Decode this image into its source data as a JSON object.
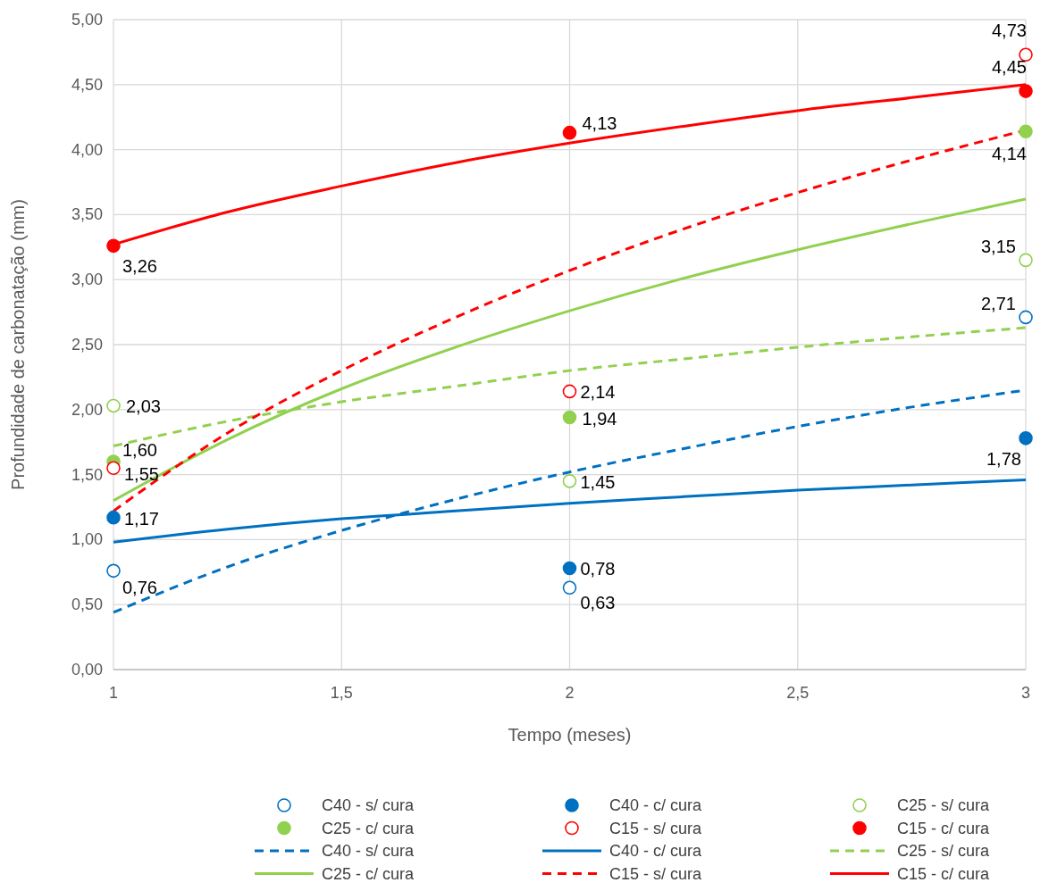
{
  "chart_data": {
    "type": "scatter",
    "xlabel": "Tempo (meses)",
    "ylabel": "Profundidade de carbonatação (mm)",
    "xlim": [
      1,
      3
    ],
    "xticks": [
      1,
      {
        "value": 1.5,
        "label": "1,5"
      },
      2,
      {
        "value": 2.5,
        "label": "2,5"
      },
      3
    ],
    "ylim": [
      0,
      5
    ],
    "yticks": [
      {
        "value": 0,
        "label": "0,00"
      },
      {
        "value": 0.5,
        "label": "0,50"
      },
      {
        "value": 1,
        "label": "1,00"
      },
      {
        "value": 1.5,
        "label": "1,50"
      },
      {
        "value": 2,
        "label": "2,00"
      },
      {
        "value": 2.5,
        "label": "2,50"
      },
      {
        "value": 3,
        "label": "3,00"
      },
      {
        "value": 3.5,
        "label": "3,50"
      },
      {
        "value": 4,
        "label": "4,00"
      },
      {
        "value": 4.5,
        "label": "4,50"
      },
      {
        "value": 5,
        "label": "5,00"
      }
    ],
    "grid": true,
    "legend": "bottom",
    "x": [
      1,
      2,
      3
    ],
    "series": [
      {
        "name": "C40 - s/ cura",
        "marker": "circle",
        "color": "#0070c0",
        "values": [
          0.76,
          0.63,
          2.71
        ],
        "value_labels": [
          "0,76",
          "0,63",
          "2,71"
        ]
      },
      {
        "name": "C40 - c/ cura",
        "marker": "circle",
        "color": "#0070c0",
        "values": [
          1.17,
          0.78,
          1.78
        ],
        "value_labels": [
          "1,17",
          "0,78",
          "1,78"
        ]
      },
      {
        "name": "C25 - s/ cura",
        "marker": "circle",
        "color": "#92d050",
        "values": [
          2.03,
          1.45,
          3.15
        ],
        "value_labels": [
          "2,03",
          "1,45",
          "3,15"
        ]
      },
      {
        "name": "C25 - c/ cura",
        "marker": "circle",
        "color": "#92d050",
        "values": [
          1.6,
          1.94,
          4.14
        ],
        "value_labels": [
          "1,60",
          "1,94",
          "4,14"
        ]
      },
      {
        "name": "C15 - s/ cura",
        "marker": "circle",
        "color": "#ff0000",
        "values": [
          1.55,
          2.14,
          4.73
        ],
        "value_labels": [
          "1,55",
          "2,14",
          "4,73"
        ]
      },
      {
        "name": "C15 - c/ cura",
        "marker": "circle",
        "color": "#ff0000",
        "values": [
          3.26,
          4.13,
          4.45
        ],
        "value_labels": [
          "3,26",
          "4,13",
          "4,45"
        ]
      },
      {
        "name": "C40 - s/ cura",
        "type": "line",
        "line_style": "dashed",
        "color": "#0070c0",
        "x": [
          1,
          1.25,
          1.5,
          1.75,
          2,
          2.25,
          2.5,
          2.75,
          3
        ],
        "values": [
          0.44,
          0.79,
          1.07,
          1.31,
          1.52,
          1.7,
          1.87,
          2.02,
          2.15
        ]
      },
      {
        "name": "C40 - c/ cura",
        "type": "line",
        "line_style": "solid",
        "color": "#0070c0",
        "x": [
          1,
          1.25,
          1.5,
          1.75,
          2,
          2.25,
          2.5,
          2.75,
          3
        ],
        "values": [
          0.98,
          1.08,
          1.16,
          1.22,
          1.28,
          1.33,
          1.38,
          1.42,
          1.46
        ]
      },
      {
        "name": "C25 - s/ cura",
        "type": "line",
        "line_style": "dashed",
        "color": "#92d050",
        "x": [
          1,
          1.25,
          1.5,
          1.75,
          2,
          2.25,
          2.5,
          2.75,
          3
        ],
        "values": [
          1.72,
          1.91,
          2.06,
          2.18,
          2.3,
          2.39,
          2.48,
          2.56,
          2.63
        ]
      },
      {
        "name": "C25 - c/ cura",
        "type": "line",
        "line_style": "solid",
        "color": "#92d050",
        "x": [
          1,
          1.25,
          1.5,
          1.75,
          2,
          2.25,
          2.5,
          2.75,
          3
        ],
        "values": [
          1.3,
          1.77,
          2.16,
          2.48,
          2.76,
          3.01,
          3.23,
          3.43,
          3.62
        ]
      },
      {
        "name": "C15 - s/ cura",
        "type": "line",
        "line_style": "dashed",
        "color": "#ff0000",
        "x": [
          1,
          1.25,
          1.5,
          1.75,
          2,
          2.25,
          2.5,
          2.75,
          3
        ],
        "values": [
          1.22,
          1.82,
          2.3,
          2.71,
          3.07,
          3.39,
          3.67,
          3.92,
          4.15
        ]
      },
      {
        "name": "C15 - c/ cura",
        "type": "line",
        "line_style": "solid",
        "color": "#ff0000",
        "x": [
          1,
          1.25,
          1.5,
          1.75,
          2,
          2.25,
          2.5,
          2.75,
          3
        ],
        "values": [
          3.27,
          3.52,
          3.72,
          3.9,
          4.05,
          4.18,
          4.3,
          4.4,
          4.5
        ]
      }
    ]
  }
}
